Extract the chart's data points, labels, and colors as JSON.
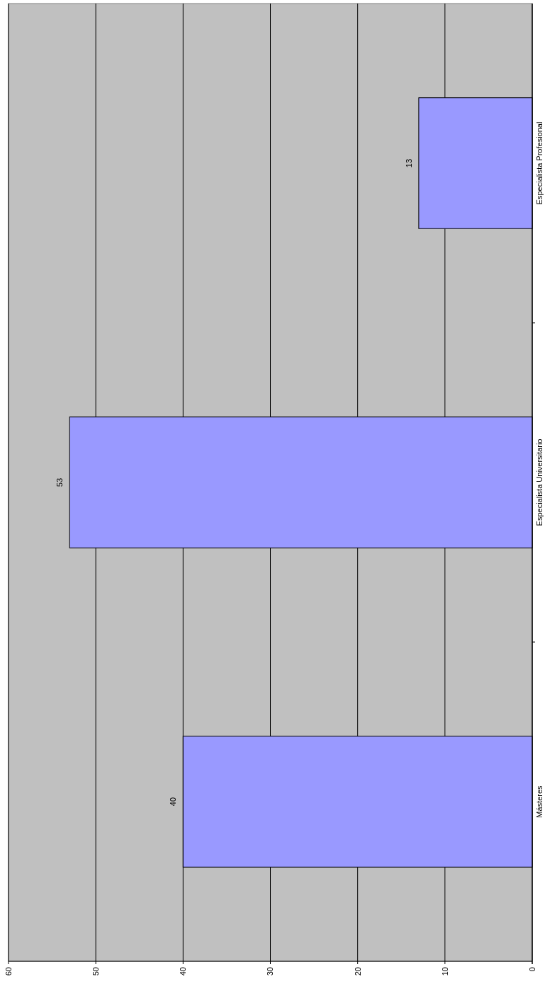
{
  "chart_data": {
    "type": "bar",
    "orientation": "horizontal",
    "categories": [
      "Especialista Profesional",
      "Especialista Universitario",
      "Másteres"
    ],
    "values": [
      13,
      53,
      40
    ],
    "color": "#9999ff",
    "xlim": [
      60,
      0
    ],
    "xticks": [
      60,
      50,
      40,
      30,
      20,
      10,
      0
    ],
    "grid": "x",
    "data_labels": true
  }
}
